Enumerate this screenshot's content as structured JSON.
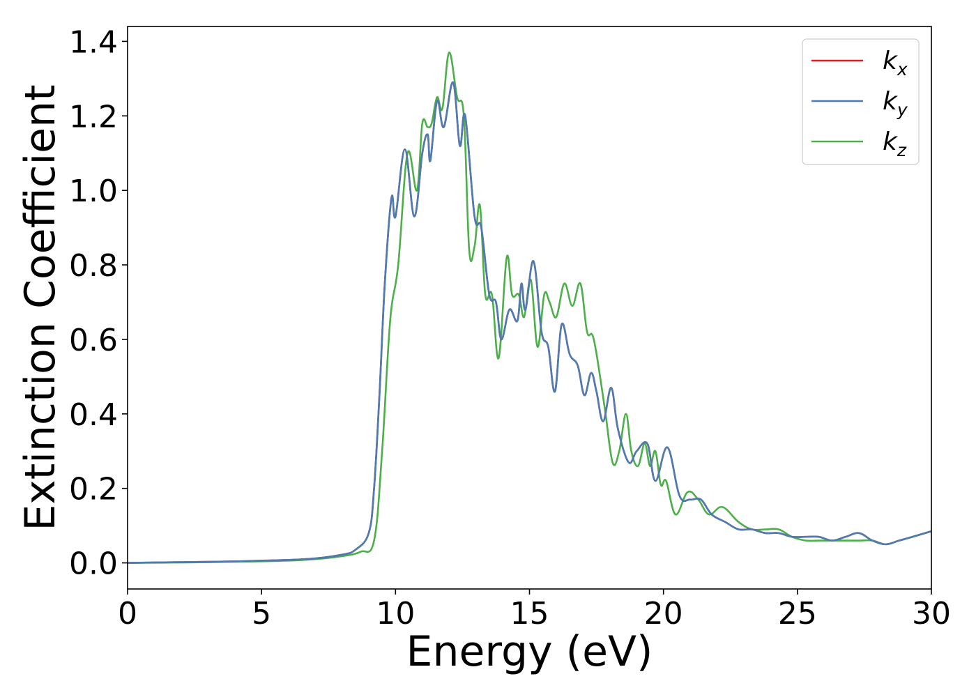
{
  "chart_data": {
    "type": "line",
    "xlabel": "Energy (eV)",
    "ylabel": "Extinction Coefficient",
    "xlim": [
      0,
      30
    ],
    "ylim": [
      -0.07,
      1.44
    ],
    "xticks": [
      0,
      5,
      10,
      15,
      20,
      25,
      30
    ],
    "yticks": [
      0.0,
      0.2,
      0.4,
      0.6,
      0.8,
      1.0,
      1.2,
      1.4
    ],
    "grid": false,
    "legend": {
      "position": "top-right"
    },
    "series": [
      {
        "name": "k_x",
        "label_base": "k",
        "label_sub": "x",
        "color": "#e41a1c",
        "x": [
          0,
          2,
          4,
          6,
          7,
          8,
          8.5,
          9,
          9.2,
          9.4,
          9.6,
          9.85,
          10.0,
          10.35,
          10.7,
          11.0,
          11.2,
          11.3,
          11.55,
          11.8,
          12.15,
          12.4,
          12.6,
          12.95,
          13.2,
          13.5,
          13.75,
          13.95,
          14.25,
          14.55,
          14.7,
          14.85,
          15.15,
          15.45,
          15.7,
          15.95,
          16.2,
          16.5,
          16.8,
          17.05,
          17.3,
          17.5,
          17.75,
          18.05,
          18.3,
          18.7,
          19.0,
          19.4,
          19.7,
          20.15,
          20.6,
          21.0,
          21.4,
          21.8,
          22.3,
          22.8,
          23.3,
          23.8,
          24.3,
          24.8,
          25.3,
          25.8,
          26.3,
          26.8,
          27.3,
          27.8,
          28.3,
          28.8,
          29.3,
          30.0
        ],
        "y": [
          0.0,
          0.002,
          0.004,
          0.008,
          0.012,
          0.022,
          0.035,
          0.08,
          0.2,
          0.45,
          0.75,
          0.98,
          0.93,
          1.11,
          0.93,
          1.1,
          1.15,
          1.08,
          1.24,
          1.17,
          1.29,
          1.12,
          1.2,
          0.93,
          0.9,
          0.72,
          0.7,
          0.6,
          0.68,
          0.65,
          0.75,
          0.68,
          0.81,
          0.62,
          0.58,
          0.46,
          0.64,
          0.56,
          0.53,
          0.45,
          0.51,
          0.46,
          0.38,
          0.47,
          0.36,
          0.27,
          0.3,
          0.32,
          0.22,
          0.31,
          0.18,
          0.17,
          0.17,
          0.13,
          0.11,
          0.09,
          0.09,
          0.08,
          0.08,
          0.07,
          0.07,
          0.07,
          0.06,
          0.07,
          0.08,
          0.06,
          0.05,
          0.06,
          0.07,
          0.085
        ]
      },
      {
        "name": "k_y",
        "label_base": "k",
        "label_sub": "y",
        "color": "#4a7db5",
        "x": [
          0,
          2,
          4,
          6,
          7,
          8,
          8.5,
          9,
          9.2,
          9.4,
          9.6,
          9.85,
          10.0,
          10.35,
          10.7,
          11.0,
          11.2,
          11.3,
          11.55,
          11.8,
          12.15,
          12.4,
          12.6,
          12.95,
          13.2,
          13.5,
          13.75,
          13.95,
          14.25,
          14.55,
          14.7,
          14.85,
          15.15,
          15.45,
          15.7,
          15.95,
          16.2,
          16.5,
          16.8,
          17.05,
          17.3,
          17.5,
          17.75,
          18.05,
          18.3,
          18.7,
          19.0,
          19.4,
          19.7,
          20.15,
          20.6,
          21.0,
          21.4,
          21.8,
          22.3,
          22.8,
          23.3,
          23.8,
          24.3,
          24.8,
          25.3,
          25.8,
          26.3,
          26.8,
          27.3,
          27.8,
          28.3,
          28.8,
          29.3,
          30.0
        ],
        "y": [
          0.0,
          0.002,
          0.004,
          0.008,
          0.012,
          0.022,
          0.035,
          0.08,
          0.2,
          0.45,
          0.75,
          0.98,
          0.93,
          1.11,
          0.93,
          1.1,
          1.15,
          1.08,
          1.24,
          1.17,
          1.29,
          1.12,
          1.2,
          0.93,
          0.9,
          0.72,
          0.7,
          0.6,
          0.68,
          0.65,
          0.75,
          0.68,
          0.81,
          0.62,
          0.58,
          0.46,
          0.64,
          0.56,
          0.53,
          0.45,
          0.51,
          0.46,
          0.38,
          0.47,
          0.36,
          0.27,
          0.3,
          0.32,
          0.22,
          0.31,
          0.18,
          0.17,
          0.17,
          0.13,
          0.11,
          0.09,
          0.09,
          0.08,
          0.08,
          0.07,
          0.07,
          0.07,
          0.06,
          0.07,
          0.08,
          0.06,
          0.05,
          0.06,
          0.07,
          0.085
        ]
      },
      {
        "name": "k_z",
        "label_base": "k",
        "label_sub": "z",
        "color": "#4daf4a",
        "x": [
          0,
          2,
          4,
          6,
          7,
          8,
          8.7,
          9.2,
          9.5,
          9.8,
          10.1,
          10.45,
          10.8,
          11.0,
          11.2,
          11.35,
          11.55,
          11.75,
          12.0,
          12.3,
          12.55,
          12.75,
          12.95,
          13.15,
          13.35,
          13.6,
          13.85,
          14.15,
          14.35,
          14.6,
          14.8,
          15.05,
          15.3,
          15.55,
          15.75,
          16.0,
          16.3,
          16.6,
          16.9,
          17.15,
          17.4,
          17.8,
          18.1,
          18.35,
          18.6,
          18.8,
          19.05,
          19.3,
          19.5,
          19.7,
          19.9,
          20.1,
          20.45,
          20.9,
          21.3,
          21.7,
          22.2,
          22.8,
          23.3,
          23.8,
          24.3,
          24.8,
          25.3,
          25.8,
          26.3,
          26.8,
          27.3,
          27.8,
          28.3,
          28.8,
          29.3,
          30.0
        ],
        "y": [
          0.0,
          0.001,
          0.003,
          0.006,
          0.01,
          0.018,
          0.03,
          0.06,
          0.3,
          0.65,
          0.8,
          1.1,
          1.0,
          1.18,
          1.17,
          1.18,
          1.25,
          1.22,
          1.37,
          1.25,
          1.2,
          0.84,
          0.85,
          0.96,
          0.72,
          0.72,
          0.55,
          0.82,
          0.72,
          0.72,
          0.66,
          0.76,
          0.58,
          0.72,
          0.7,
          0.66,
          0.75,
          0.69,
          0.75,
          0.62,
          0.6,
          0.42,
          0.27,
          0.3,
          0.4,
          0.3,
          0.26,
          0.32,
          0.26,
          0.3,
          0.21,
          0.22,
          0.13,
          0.19,
          0.17,
          0.13,
          0.15,
          0.11,
          0.09,
          0.09,
          0.09,
          0.07,
          0.06,
          0.06,
          0.06,
          0.06,
          0.06,
          0.06,
          0.05,
          0.06,
          0.07,
          0.085
        ]
      }
    ]
  }
}
